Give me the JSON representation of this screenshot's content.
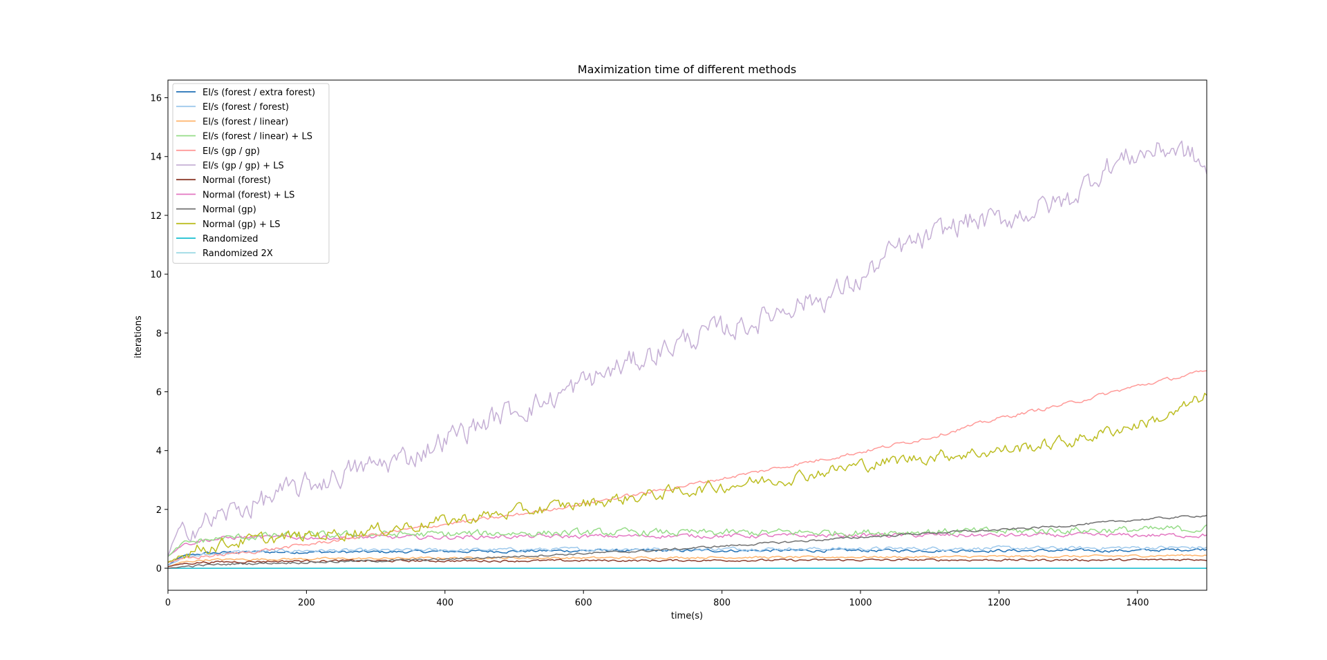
{
  "chart_data": {
    "type": "line",
    "title": "Maximization time of different methods",
    "xlabel": "time(s)",
    "ylabel": "iterations",
    "xlim": [
      0,
      1500
    ],
    "ylim": [
      -0.75,
      16.6
    ],
    "xticks": [
      0,
      200,
      400,
      600,
      800,
      1000,
      1200,
      1400
    ],
    "yticks": [
      0,
      2,
      4,
      6,
      8,
      10,
      12,
      14,
      16
    ],
    "grid": false,
    "legend_position": "upper-left",
    "series": [
      {
        "name": "EI/s (forest / extra forest)",
        "color": "#1f6fb4",
        "x": [
          0,
          20,
          50,
          100,
          200,
          300,
          400,
          500,
          600,
          700,
          800,
          900,
          1000,
          1100,
          1200,
          1300,
          1400,
          1500
        ],
        "y": [
          0.1,
          0.4,
          0.5,
          0.55,
          0.55,
          0.55,
          0.57,
          0.58,
          0.6,
          0.6,
          0.6,
          0.6,
          0.6,
          0.6,
          0.6,
          0.6,
          0.6,
          0.65
        ],
        "noise": 0.04
      },
      {
        "name": "EI/s (forest / forest)",
        "color": "#9ec9ec",
        "x": [
          0,
          20,
          50,
          100,
          200,
          300,
          400,
          500,
          600,
          700,
          800,
          900,
          1000,
          1100,
          1200,
          1300,
          1400,
          1500
        ],
        "y": [
          0.1,
          0.35,
          0.45,
          0.55,
          0.6,
          0.6,
          0.62,
          0.63,
          0.65,
          0.65,
          0.66,
          0.66,
          0.66,
          0.67,
          0.68,
          0.68,
          0.7,
          0.7
        ],
        "noise": 0.05
      },
      {
        "name": "EI/s (forest / linear)",
        "color": "#ffb36a",
        "x": [
          0,
          20,
          50,
          100,
          200,
          300,
          400,
          500,
          600,
          700,
          800,
          900,
          1000,
          1100,
          1200,
          1300,
          1400,
          1500
        ],
        "y": [
          0.05,
          0.2,
          0.28,
          0.3,
          0.32,
          0.33,
          0.35,
          0.35,
          0.35,
          0.36,
          0.37,
          0.37,
          0.38,
          0.38,
          0.4,
          0.4,
          0.42,
          0.45
        ],
        "noise": 0.03
      },
      {
        "name": "EI/s (forest / linear) + LS",
        "color": "#96dc88",
        "x": [
          0,
          20,
          50,
          100,
          150,
          200,
          300,
          400,
          500,
          600,
          700,
          800,
          900,
          1000,
          1100,
          1200,
          1300,
          1400,
          1500
        ],
        "y": [
          0.4,
          0.8,
          0.95,
          1.05,
          1.1,
          1.1,
          1.15,
          1.15,
          1.2,
          1.2,
          1.22,
          1.2,
          1.22,
          1.22,
          1.25,
          1.25,
          1.3,
          1.3,
          1.35
        ],
        "noise": 0.1
      },
      {
        "name": "EI/s (gp / gp)",
        "color": "#ff9a98",
        "x": [
          0,
          20,
          50,
          100,
          200,
          300,
          400,
          500,
          600,
          700,
          800,
          900,
          1000,
          1100,
          1200,
          1300,
          1400,
          1500
        ],
        "y": [
          0.2,
          0.3,
          0.4,
          0.5,
          0.8,
          1.15,
          1.5,
          1.8,
          2.2,
          2.6,
          3.05,
          3.5,
          3.95,
          4.45,
          5.1,
          5.6,
          6.2,
          6.7
        ],
        "noise": 0.05
      },
      {
        "name": "EI/s (gp / gp) + LS",
        "color": "#c5afd5",
        "x": [
          0,
          10,
          30,
          60,
          100,
          150,
          200,
          250,
          300,
          350,
          400,
          450,
          500,
          550,
          600,
          650,
          700,
          750,
          800,
          850,
          900,
          950,
          1000,
          1050,
          1100,
          1150,
          1200,
          1250,
          1300,
          1350,
          1400,
          1450,
          1480,
          1500
        ],
        "y": [
          0.4,
          1.0,
          1.4,
          1.6,
          2.0,
          2.4,
          2.8,
          3.2,
          3.5,
          3.8,
          4.4,
          4.9,
          5.4,
          5.7,
          6.3,
          6.8,
          7.3,
          7.8,
          8.1,
          8.4,
          9.0,
          9.2,
          9.8,
          10.8,
          11.2,
          11.8,
          11.8,
          12.2,
          12.5,
          13.6,
          14.1,
          14.3,
          14.0,
          13.5
        ],
        "noise": 0.35
      },
      {
        "name": "Normal (forest)",
        "color": "#8c3a2a",
        "x": [
          0,
          20,
          50,
          100,
          200,
          300,
          400,
          500,
          600,
          700,
          800,
          900,
          1000,
          1100,
          1200,
          1300,
          1400,
          1500
        ],
        "y": [
          0.05,
          0.15,
          0.2,
          0.22,
          0.25,
          0.25,
          0.25,
          0.25,
          0.26,
          0.26,
          0.27,
          0.27,
          0.28,
          0.28,
          0.28,
          0.28,
          0.28,
          0.3
        ],
        "noise": 0.03
      },
      {
        "name": "Normal (forest) + LS",
        "color": "#e377c2",
        "x": [
          0,
          20,
          50,
          100,
          200,
          300,
          400,
          500,
          600,
          700,
          800,
          900,
          1000,
          1100,
          1200,
          1300,
          1400,
          1500
        ],
        "y": [
          0.4,
          0.8,
          0.95,
          1.05,
          1.05,
          1.05,
          1.05,
          1.08,
          1.08,
          1.1,
          1.1,
          1.1,
          1.12,
          1.12,
          1.12,
          1.12,
          1.12,
          1.12
        ],
        "noise": 0.06
      },
      {
        "name": "Normal (gp)",
        "color": "#707070",
        "x": [
          0,
          20,
          50,
          100,
          200,
          300,
          400,
          500,
          600,
          700,
          800,
          900,
          1000,
          1100,
          1200,
          1300,
          1400,
          1500
        ],
        "y": [
          0.0,
          0.05,
          0.1,
          0.15,
          0.2,
          0.25,
          0.3,
          0.4,
          0.5,
          0.6,
          0.75,
          0.9,
          1.05,
          1.2,
          1.3,
          1.45,
          1.65,
          1.8
        ],
        "noise": 0.03
      },
      {
        "name": "Normal (gp) + LS",
        "color": "#bcbd22",
        "x": [
          0,
          20,
          50,
          100,
          200,
          300,
          400,
          500,
          600,
          700,
          800,
          900,
          1000,
          1100,
          1200,
          1300,
          1400,
          1450,
          1500
        ],
        "y": [
          0.2,
          0.5,
          0.7,
          0.9,
          1.1,
          1.3,
          1.6,
          1.9,
          2.2,
          2.5,
          2.8,
          3.1,
          3.5,
          3.8,
          4.0,
          4.3,
          4.9,
          5.2,
          5.9
        ],
        "noise": 0.18
      },
      {
        "name": "Randomized",
        "color": "#17becf",
        "x": [
          0,
          1500
        ],
        "y": [
          0.0,
          0.0
        ],
        "noise": 0
      },
      {
        "name": "Randomized 2X",
        "color": "#9edae5",
        "x": [
          0,
          1500
        ],
        "y": [
          0.0,
          0.0
        ],
        "noise": 0
      }
    ]
  }
}
